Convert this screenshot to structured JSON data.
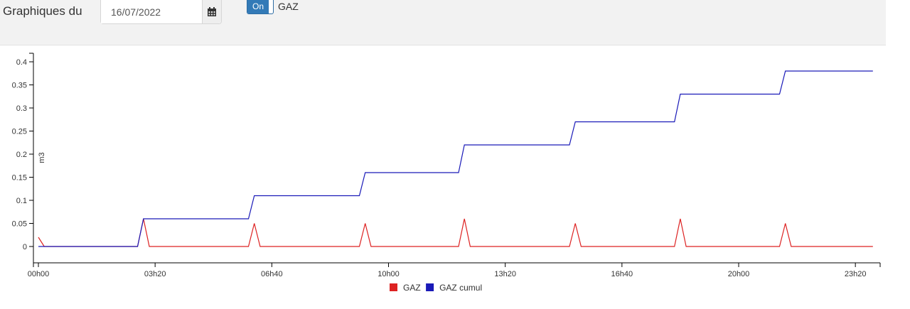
{
  "header": {
    "label": "Graphiques du",
    "date_value": "16/07/2022",
    "toggle_label": "On",
    "toggle_text": "GAZ"
  },
  "icons": {
    "calendar": "calendar-icon"
  },
  "chart_data": {
    "type": "line",
    "ylabel": "m3",
    "xlabel": "",
    "ylim": [
      0,
      0.4
    ],
    "xlim_minutes": [
      0,
      1440
    ],
    "yticks": [
      "0",
      "0.05",
      "0.1",
      "0.15",
      "0.2",
      "0.25",
      "0.3",
      "0.35",
      "0.4"
    ],
    "xticks": [
      "00h00",
      "03h20",
      "06h40",
      "10h00",
      "13h20",
      "16h40",
      "20h00",
      "23h20"
    ],
    "legend_position": "bottom-center",
    "series": [
      {
        "name": "GAZ",
        "color": "#dd2222",
        "points": [
          [
            "00h00",
            0.02
          ],
          [
            "00h10",
            0
          ],
          [
            "02h50",
            0
          ],
          [
            "03h00",
            0.06
          ],
          [
            "03h10",
            0
          ],
          [
            "06h00",
            0
          ],
          [
            "06h10",
            0.05
          ],
          [
            "06h20",
            0
          ],
          [
            "09h10",
            0
          ],
          [
            "09h20",
            0.05
          ],
          [
            "09h30",
            0
          ],
          [
            "12h00",
            0
          ],
          [
            "12h10",
            0.06
          ],
          [
            "12h20",
            0
          ],
          [
            "15h10",
            0
          ],
          [
            "15h20",
            0.05
          ],
          [
            "15h30",
            0
          ],
          [
            "18h10",
            0
          ],
          [
            "18h20",
            0.06
          ],
          [
            "18h30",
            0
          ],
          [
            "21h10",
            0
          ],
          [
            "21h20",
            0.05
          ],
          [
            "21h30",
            0
          ],
          [
            "23h50",
            0
          ]
        ]
      },
      {
        "name": "GAZ cumul",
        "color": "#1a1ab8",
        "points": [
          [
            "00h00",
            0
          ],
          [
            "02h50",
            0
          ],
          [
            "03h00",
            0.06
          ],
          [
            "06h00",
            0.06
          ],
          [
            "06h10",
            0.11
          ],
          [
            "09h10",
            0.11
          ],
          [
            "09h20",
            0.16
          ],
          [
            "12h00",
            0.16
          ],
          [
            "12h10",
            0.22
          ],
          [
            "15h10",
            0.22
          ],
          [
            "15h20",
            0.27
          ],
          [
            "18h10",
            0.27
          ],
          [
            "18h20",
            0.33
          ],
          [
            "21h10",
            0.33
          ],
          [
            "21h20",
            0.38
          ],
          [
            "23h50",
            0.38
          ]
        ]
      }
    ]
  }
}
